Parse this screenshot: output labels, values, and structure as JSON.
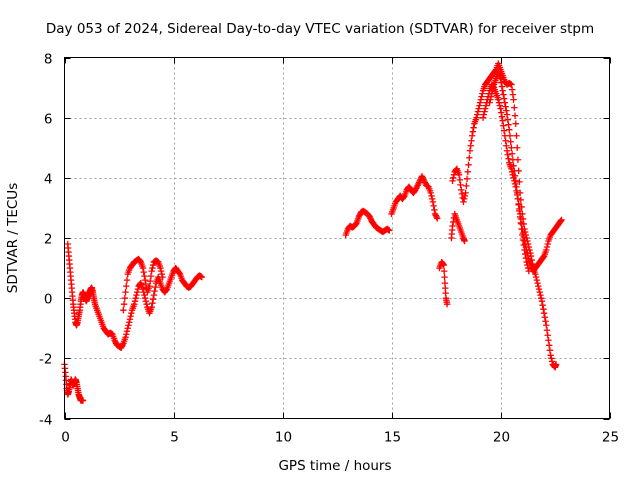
{
  "chart_data": {
    "type": "scatter",
    "title": "Day 053 of 2024, Sidereal Day-to-day VTEC variation (SDTVAR) for receiver stpm",
    "xlabel": "GPS time / hours",
    "ylabel": "SDTVAR / TECUs",
    "xlim": [
      0,
      25
    ],
    "ylim": [
      -4,
      8
    ],
    "xticks": [
      "0",
      "5",
      "10",
      "15",
      "20",
      "25"
    ],
    "yticks": [
      "-4",
      "-2",
      "0",
      "2",
      "4",
      "6",
      "8"
    ],
    "grid": true,
    "marker": "plus",
    "color": "#ff0000",
    "series": [
      {
        "name": "SDTVAR",
        "segments": [
          [
            [
              0.0,
              -2.2
            ],
            [
              0.06,
              -2.6
            ],
            [
              0.1,
              -3.0
            ],
            [
              0.15,
              -3.2
            ],
            [
              0.2,
              -3.1
            ],
            [
              0.25,
              -2.9
            ],
            [
              0.3,
              -2.7
            ],
            [
              0.35,
              -2.8
            ],
            [
              0.4,
              -2.9
            ],
            [
              0.45,
              -2.8
            ],
            [
              0.5,
              -2.7
            ],
            [
              0.55,
              -2.8
            ],
            [
              0.6,
              -3.0
            ],
            [
              0.65,
              -3.2
            ],
            [
              0.7,
              -3.3
            ],
            [
              0.75,
              -3.4
            ],
            [
              0.8,
              -3.4
            ],
            [
              0.85,
              -3.4
            ]
          ],
          [
            [
              0.15,
              1.8
            ],
            [
              0.2,
              1.4
            ],
            [
              0.25,
              1.0
            ],
            [
              0.3,
              0.6
            ],
            [
              0.35,
              0.2
            ],
            [
              0.4,
              -0.2
            ],
            [
              0.45,
              -0.5
            ],
            [
              0.5,
              -0.8
            ],
            [
              0.55,
              -0.9
            ],
            [
              0.6,
              -0.8
            ],
            [
              0.65,
              -0.6
            ],
            [
              0.7,
              -0.4
            ],
            [
              0.75,
              -0.1
            ],
            [
              0.8,
              0.1
            ],
            [
              0.85,
              0.2
            ],
            [
              0.9,
              0.1
            ],
            [
              0.95,
              0.0
            ],
            [
              1.0,
              -0.1
            ],
            [
              1.05,
              0.0
            ],
            [
              1.1,
              0.1
            ],
            [
              1.15,
              0.2
            ],
            [
              1.2,
              0.3
            ],
            [
              1.25,
              0.35
            ],
            [
              1.3,
              0.2
            ],
            [
              1.35,
              0.0
            ],
            [
              1.4,
              -0.2
            ],
            [
              1.5,
              -0.4
            ],
            [
              1.6,
              -0.6
            ],
            [
              1.7,
              -0.8
            ],
            [
              1.8,
              -1.0
            ],
            [
              1.9,
              -1.1
            ],
            [
              2.0,
              -1.2
            ],
            [
              2.1,
              -1.15
            ],
            [
              2.2,
              -1.2
            ],
            [
              2.3,
              -1.4
            ],
            [
              2.4,
              -1.55
            ],
            [
              2.5,
              -1.6
            ],
            [
              2.6,
              -1.65
            ],
            [
              2.7,
              -1.5
            ],
            [
              2.8,
              -1.3
            ],
            [
              2.9,
              -1.0
            ],
            [
              3.0,
              -0.7
            ],
            [
              3.1,
              -0.4
            ],
            [
              3.2,
              -0.2
            ],
            [
              3.3,
              0.1
            ],
            [
              3.4,
              0.4
            ],
            [
              3.5,
              0.5
            ],
            [
              3.6,
              0.3
            ],
            [
              3.7,
              0.0
            ],
            [
              3.8,
              -0.3
            ],
            [
              3.9,
              -0.5
            ],
            [
              4.0,
              -0.3
            ],
            [
              4.1,
              0.1
            ],
            [
              4.2,
              0.5
            ],
            [
              4.3,
              0.7
            ],
            [
              4.4,
              0.5
            ],
            [
              4.5,
              0.3
            ],
            [
              4.6,
              0.2
            ],
            [
              4.7,
              0.3
            ],
            [
              4.8,
              0.5
            ],
            [
              4.9,
              0.7
            ],
            [
              5.0,
              0.9
            ],
            [
              5.1,
              1.0
            ],
            [
              5.2,
              0.9
            ],
            [
              5.3,
              0.8
            ],
            [
              5.4,
              0.6
            ],
            [
              5.5,
              0.5
            ],
            [
              5.6,
              0.4
            ],
            [
              5.7,
              0.35
            ],
            [
              5.8,
              0.4
            ],
            [
              5.9,
              0.5
            ],
            [
              6.0,
              0.6
            ],
            [
              6.1,
              0.7
            ],
            [
              6.2,
              0.75
            ],
            [
              6.3,
              0.7
            ]
          ],
          [
            [
              2.7,
              -0.4
            ],
            [
              2.8,
              0.2
            ],
            [
              2.9,
              0.8
            ],
            [
              3.0,
              1.0
            ],
            [
              3.1,
              1.1
            ],
            [
              3.2,
              1.2
            ],
            [
              3.3,
              1.25
            ],
            [
              3.4,
              1.3
            ],
            [
              3.5,
              1.2
            ],
            [
              3.6,
              1.0
            ],
            [
              3.7,
              0.6
            ],
            [
              3.8,
              0.2
            ],
            [
              3.9,
              0.4
            ],
            [
              4.0,
              0.9
            ],
            [
              4.1,
              1.2
            ],
            [
              4.2,
              1.25
            ],
            [
              4.3,
              1.2
            ],
            [
              4.4,
              1.0
            ],
            [
              4.5,
              0.7
            ]
          ],
          [
            [
              12.9,
              2.1
            ],
            [
              13.0,
              2.3
            ],
            [
              13.1,
              2.4
            ],
            [
              13.2,
              2.35
            ],
            [
              13.3,
              2.4
            ],
            [
              13.4,
              2.5
            ],
            [
              13.5,
              2.7
            ],
            [
              13.6,
              2.85
            ],
            [
              13.7,
              2.9
            ],
            [
              13.8,
              2.85
            ],
            [
              13.9,
              2.8
            ],
            [
              14.0,
              2.7
            ],
            [
              14.1,
              2.55
            ],
            [
              14.2,
              2.45
            ],
            [
              14.3,
              2.35
            ],
            [
              14.4,
              2.3
            ],
            [
              14.5,
              2.25
            ],
            [
              14.6,
              2.2
            ],
            [
              14.7,
              2.25
            ],
            [
              14.8,
              2.3
            ],
            [
              14.9,
              2.25
            ]
          ],
          [
            [
              15.0,
              2.8
            ],
            [
              15.1,
              3.0
            ],
            [
              15.2,
              3.2
            ],
            [
              15.3,
              3.3
            ],
            [
              15.4,
              3.4
            ],
            [
              15.5,
              3.3
            ],
            [
              15.6,
              3.4
            ],
            [
              15.7,
              3.6
            ],
            [
              15.8,
              3.7
            ],
            [
              15.9,
              3.6
            ],
            [
              16.0,
              3.5
            ],
            [
              16.1,
              3.6
            ],
            [
              16.2,
              3.75
            ],
            [
              16.3,
              3.9
            ],
            [
              16.4,
              4.05
            ],
            [
              16.5,
              3.9
            ],
            [
              16.6,
              3.75
            ],
            [
              16.7,
              3.7
            ],
            [
              16.8,
              3.5
            ],
            [
              16.9,
              3.2
            ],
            [
              17.0,
              2.8
            ],
            [
              17.1,
              2.65
            ]
          ],
          [
            [
              17.2,
              1.0
            ],
            [
              17.3,
              1.2
            ],
            [
              17.4,
              1.1
            ],
            [
              17.45,
              0.5
            ],
            [
              17.5,
              0.0
            ],
            [
              17.55,
              -0.2
            ]
          ],
          [
            [
              17.75,
              2.0
            ],
            [
              17.8,
              2.4
            ],
            [
              17.9,
              2.8
            ],
            [
              18.0,
              2.6
            ],
            [
              18.1,
              2.4
            ],
            [
              18.2,
              2.2
            ],
            [
              18.3,
              2.0
            ],
            [
              18.35,
              1.9
            ]
          ],
          [
            [
              17.8,
              3.9
            ],
            [
              17.9,
              4.2
            ],
            [
              18.0,
              4.3
            ],
            [
              18.1,
              4.1
            ],
            [
              18.2,
              3.6
            ],
            [
              18.3,
              3.2
            ],
            [
              18.4,
              3.5
            ],
            [
              18.5,
              4.2
            ],
            [
              18.6,
              4.9
            ],
            [
              18.7,
              5.4
            ],
            [
              18.8,
              5.8
            ],
            [
              18.9,
              6.0
            ],
            [
              19.0,
              6.3
            ],
            [
              19.1,
              6.6
            ],
            [
              19.2,
              6.9
            ],
            [
              19.3,
              7.1
            ],
            [
              19.4,
              7.2
            ],
            [
              19.5,
              7.3
            ],
            [
              19.6,
              7.4
            ],
            [
              19.7,
              7.5
            ],
            [
              19.8,
              7.6
            ],
            [
              19.9,
              7.8
            ],
            [
              20.0,
              7.6
            ],
            [
              20.1,
              7.4
            ],
            [
              20.2,
              7.2
            ],
            [
              20.3,
              7.1
            ],
            [
              20.4,
              7.15
            ],
            [
              20.5,
              7.1
            ],
            [
              20.6,
              6.6
            ],
            [
              20.7,
              5.8
            ],
            [
              20.8,
              4.6
            ],
            [
              20.9,
              3.5
            ],
            [
              21.0,
              2.8
            ],
            [
              21.1,
              2.3
            ],
            [
              21.2,
              2.0
            ],
            [
              21.3,
              1.7
            ],
            [
              21.4,
              1.4
            ],
            [
              21.5,
              1.0
            ],
            [
              21.6,
              0.8
            ],
            [
              21.7,
              0.5
            ],
            [
              21.8,
              0.2
            ],
            [
              21.9,
              -0.1
            ],
            [
              22.0,
              -0.5
            ],
            [
              22.1,
              -0.9
            ],
            [
              22.2,
              -1.4
            ],
            [
              22.3,
              -1.9
            ],
            [
              22.4,
              -2.2
            ],
            [
              22.5,
              -2.3
            ],
            [
              22.55,
              -2.2
            ]
          ],
          [
            [
              19.2,
              6.0
            ],
            [
              19.3,
              6.3
            ],
            [
              19.4,
              6.6
            ],
            [
              19.5,
              6.9
            ],
            [
              19.6,
              7.1
            ],
            [
              19.7,
              7.0
            ],
            [
              19.8,
              6.8
            ],
            [
              19.9,
              6.6
            ],
            [
              20.0,
              6.3
            ],
            [
              20.1,
              5.9
            ],
            [
              20.2,
              5.4
            ],
            [
              20.3,
              4.9
            ],
            [
              20.4,
              4.5
            ],
            [
              20.5,
              4.3
            ],
            [
              20.6,
              4.0
            ],
            [
              20.7,
              3.7
            ],
            [
              20.8,
              3.3
            ],
            [
              20.9,
              2.8
            ],
            [
              21.0,
              2.3
            ],
            [
              21.1,
              1.9
            ],
            [
              21.2,
              1.6
            ],
            [
              21.3,
              1.3
            ],
            [
              21.4,
              1.1
            ],
            [
              21.5,
              0.9
            ],
            [
              21.6,
              1.0
            ],
            [
              21.7,
              1.1
            ],
            [
              21.8,
              1.2
            ],
            [
              21.9,
              1.3
            ],
            [
              22.0,
              1.4
            ],
            [
              22.1,
              1.6
            ],
            [
              22.2,
              1.9
            ],
            [
              22.3,
              2.1
            ],
            [
              22.4,
              2.2
            ],
            [
              22.5,
              2.3
            ],
            [
              22.6,
              2.4
            ],
            [
              22.7,
              2.5
            ],
            [
              22.8,
              2.6
            ]
          ],
          [
            [
              19.5,
              6.5
            ],
            [
              19.6,
              6.8
            ],
            [
              19.7,
              7.1
            ],
            [
              19.8,
              7.3
            ],
            [
              19.9,
              7.5
            ],
            [
              20.0,
              7.3
            ],
            [
              20.1,
              6.9
            ],
            [
              20.2,
              6.5
            ],
            [
              20.3,
              6.1
            ],
            [
              20.4,
              5.6
            ],
            [
              20.5,
              5.0
            ],
            [
              20.6,
              4.4
            ],
            [
              20.7,
              3.9
            ],
            [
              20.8,
              3.3
            ],
            [
              20.9,
              2.7
            ],
            [
              21.0,
              2.1
            ],
            [
              21.1,
              1.6
            ],
            [
              21.2,
              1.2
            ],
            [
              21.3,
              0.9
            ]
          ]
        ]
      }
    ]
  }
}
